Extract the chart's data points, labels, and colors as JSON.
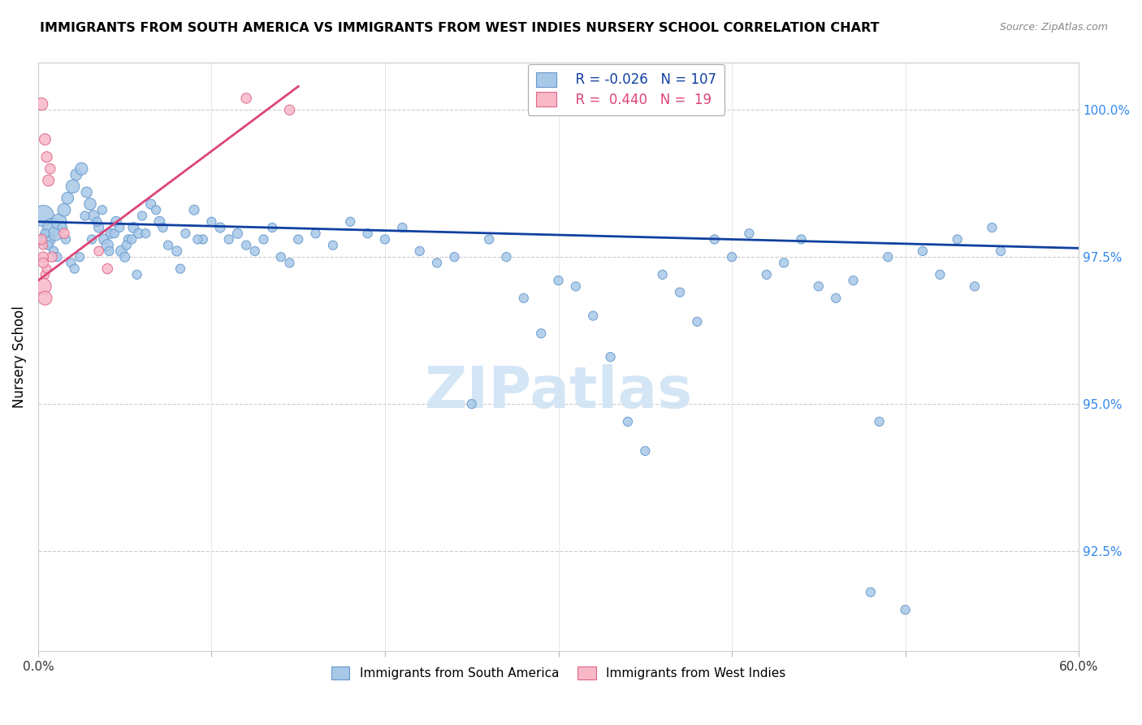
{
  "title": "IMMIGRANTS FROM SOUTH AMERICA VS IMMIGRANTS FROM WEST INDIES NURSERY SCHOOL CORRELATION CHART",
  "source": "Source: ZipAtlas.com",
  "ylabel": "Nursery School",
  "yticks": [
    92.5,
    95.0,
    97.5,
    100.0
  ],
  "ytick_labels": [
    "92.5%",
    "95.0%",
    "97.5%",
    "100.0%"
  ],
  "xmin": 0.0,
  "xmax": 60.0,
  "ymin": 90.8,
  "ymax": 100.8,
  "blue_R": "-0.026",
  "blue_N": "107",
  "pink_R": "0.440",
  "pink_N": "19",
  "blue_color": "#a8c8e8",
  "blue_edge": "#6699cc",
  "pink_color": "#f8b8c8",
  "pink_edge": "#dd6688",
  "blue_line_color": "#1040a0",
  "pink_line_color": "#dd4477",
  "watermark_color": "#d0e4f4",
  "blue_scatter_x": [
    0.3,
    0.5,
    0.8,
    1.0,
    1.2,
    1.5,
    1.7,
    2.0,
    2.2,
    2.5,
    2.8,
    3.0,
    3.2,
    3.5,
    3.8,
    4.0,
    4.2,
    4.5,
    4.8,
    5.0,
    5.2,
    5.5,
    5.8,
    6.0,
    6.5,
    7.0,
    7.5,
    8.0,
    8.5,
    9.0,
    9.5,
    10.0,
    10.5,
    11.0,
    11.5,
    12.0,
    12.5,
    13.0,
    13.5,
    14.0,
    14.5,
    15.0,
    16.0,
    17.0,
    18.0,
    19.0,
    20.0,
    21.0,
    22.0,
    23.0,
    24.0,
    25.0,
    26.0,
    27.0,
    28.0,
    29.0,
    30.0,
    31.0,
    32.0,
    33.0,
    34.0,
    35.0,
    36.0,
    37.0,
    38.0,
    39.0,
    40.0,
    41.0,
    42.0,
    43.0,
    44.0,
    45.0,
    46.0,
    47.0,
    48.0,
    49.0,
    50.0,
    51.0,
    52.0,
    53.0,
    54.0,
    55.0,
    0.4,
    0.6,
    0.9,
    1.1,
    1.4,
    1.6,
    1.9,
    2.1,
    2.4,
    2.7,
    3.1,
    3.4,
    3.7,
    4.1,
    4.4,
    4.7,
    5.1,
    5.4,
    5.7,
    6.2,
    6.8,
    7.2,
    48.5,
    55.5,
    8.2,
    9.2,
    10.2
  ],
  "blue_scatter_y": [
    98.2,
    97.8,
    98.0,
    97.9,
    98.1,
    98.3,
    98.5,
    98.7,
    98.9,
    99.0,
    98.6,
    98.4,
    98.2,
    98.0,
    97.8,
    97.7,
    97.9,
    98.1,
    97.6,
    97.5,
    97.8,
    98.0,
    97.9,
    98.2,
    98.4,
    98.1,
    97.7,
    97.6,
    97.9,
    98.3,
    97.8,
    98.1,
    98.0,
    97.8,
    97.9,
    97.7,
    97.6,
    97.8,
    98.0,
    97.5,
    97.4,
    97.8,
    97.9,
    97.7,
    98.1,
    97.9,
    97.8,
    98.0,
    97.6,
    97.4,
    97.5,
    95.0,
    97.8,
    97.5,
    96.8,
    96.2,
    97.1,
    97.0,
    96.5,
    95.8,
    94.7,
    94.2,
    97.2,
    96.9,
    96.4,
    97.8,
    97.5,
    97.9,
    97.2,
    97.4,
    97.8,
    97.0,
    96.8,
    97.1,
    91.8,
    97.5,
    91.5,
    97.6,
    97.2,
    97.8,
    97.0,
    98.0,
    97.9,
    97.7,
    97.6,
    97.5,
    98.0,
    97.8,
    97.4,
    97.3,
    97.5,
    98.2,
    97.8,
    98.1,
    98.3,
    97.6,
    97.9,
    98.0,
    97.7,
    97.8,
    97.2,
    97.9,
    98.3,
    98.0,
    94.7,
    97.6,
    97.3,
    97.8
  ],
  "blue_scatter_size": [
    350,
    220,
    270,
    160,
    190,
    130,
    110,
    140,
    100,
    120,
    90,
    110,
    95,
    75,
    85,
    105,
    75,
    85,
    95,
    75,
    65,
    85,
    75,
    65,
    75,
    85,
    65,
    75,
    65,
    75,
    65,
    65,
    75,
    65,
    75,
    65,
    65,
    65,
    65,
    65,
    65,
    65,
    65,
    65,
    65,
    65,
    65,
    65,
    65,
    65,
    65,
    65,
    65,
    65,
    65,
    65,
    65,
    65,
    65,
    65,
    65,
    65,
    65,
    65,
    65,
    65,
    65,
    65,
    65,
    65,
    65,
    65,
    65,
    65,
    65,
    65,
    65,
    65,
    65,
    65,
    65,
    65,
    65,
    65,
    65,
    65,
    65,
    65,
    65,
    65,
    65,
    65,
    65,
    65,
    65,
    65,
    65,
    65,
    65,
    65,
    65,
    65,
    65,
    65,
    65,
    65,
    65,
    65
  ],
  "pink_scatter_x": [
    0.2,
    0.4,
    0.5,
    0.6,
    0.7,
    0.3,
    0.8,
    0.4,
    1.5,
    3.5,
    4.0,
    0.3,
    0.4,
    0.5,
    0.3,
    12.0,
    14.5,
    0.2,
    0.3
  ],
  "pink_scatter_y": [
    100.1,
    99.5,
    99.2,
    98.8,
    99.0,
    97.7,
    97.5,
    97.2,
    97.9,
    97.6,
    97.3,
    97.0,
    96.8,
    97.3,
    97.5,
    100.2,
    100.0,
    97.8,
    97.4
  ],
  "pink_scatter_size": [
    120,
    100,
    90,
    100,
    80,
    60,
    80,
    60,
    80,
    70,
    80,
    200,
    150,
    60,
    80,
    80,
    80,
    80,
    80
  ],
  "blue_line_x": [
    0.0,
    60.0
  ],
  "blue_line_y": [
    98.1,
    97.65
  ],
  "pink_line_x": [
    0.0,
    15.0
  ],
  "pink_line_y": [
    97.1,
    100.4
  ]
}
